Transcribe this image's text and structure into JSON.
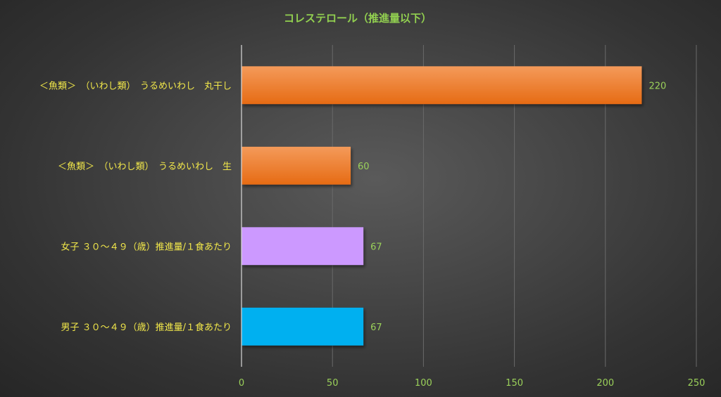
{
  "chart_data": {
    "type": "bar",
    "orientation": "horizontal",
    "title": "コレステロール（推進量以下）",
    "categories": [
      "＜魚類＞　（いわし類）　うるめいわし　丸干し",
      "＜魚類＞　（いわし類）　うるめいわし　生",
      "女子 ３０～４９（歳）推進量/１食あたり",
      "男子 ３０～４９（歳）推進量/１食あたり"
    ],
    "values": [
      220,
      60,
      67,
      67
    ],
    "value_labels": [
      "220",
      "60",
      "67",
      "67"
    ],
    "bar_colors": [
      "#ef7a2c",
      "#ef7a2c",
      "#cc99ff",
      "#00b0f0"
    ],
    "xlim": [
      0,
      250
    ],
    "xticks": [
      0,
      50,
      100,
      150,
      200,
      250
    ],
    "xtick_labels": [
      "0",
      "50",
      "100",
      "150",
      "200",
      "250"
    ],
    "grid": true,
    "legend": "none",
    "colors": {
      "title": "#92d050",
      "category_text": "#f2e84a",
      "value_text": "#9bd15a",
      "tick_text": "#9bd15a",
      "gridline": "#6a6a6a",
      "axis": "#d9d9d9"
    }
  }
}
